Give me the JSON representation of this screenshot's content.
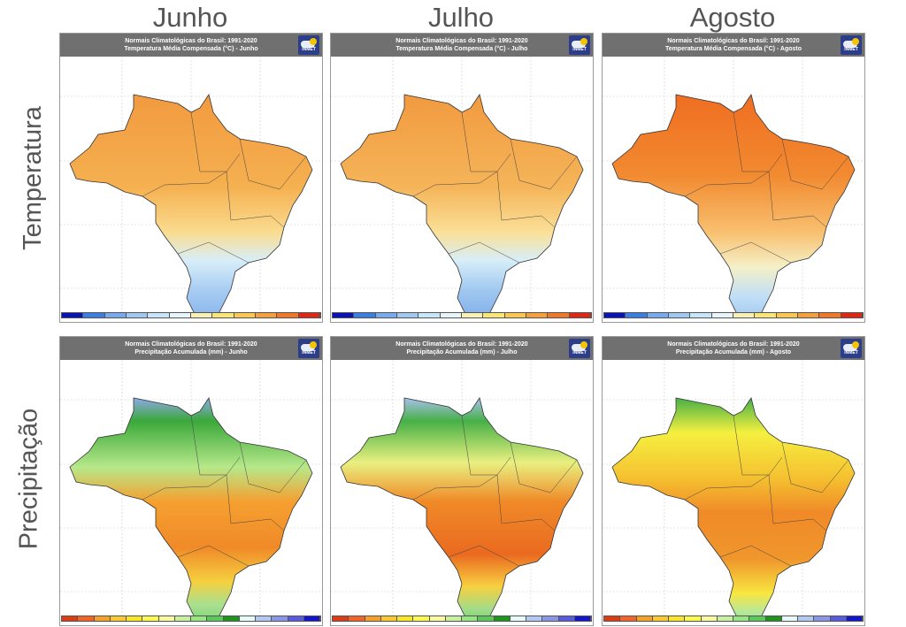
{
  "columns": [
    "Junho",
    "Julho",
    "Agosto"
  ],
  "rows": [
    "Temperatura",
    "Precipitação"
  ],
  "header_line1": "Normais Climatológicas do Brasil: 1991-2020",
  "logo": "INMET",
  "panels": [
    {
      "title": "Temperatura Média Compensada (°C) - Junho",
      "type": "temp",
      "month": "Junho"
    },
    {
      "title": "Temperatura Média Compensada (°C) - Julho",
      "type": "temp",
      "month": "Julho"
    },
    {
      "title": "Temperatura Média Compensada (°C) - Agosto",
      "type": "temp",
      "month": "Agosto"
    },
    {
      "title": "Precipitação Acumulada (mm) - Junho",
      "type": "prec",
      "month": "Junho"
    },
    {
      "title": "Precipitação Acumulada (mm) - Julho",
      "type": "prec",
      "month": "Julho"
    },
    {
      "title": "Precipitação Acumulada (mm) - Agosto",
      "type": "prec",
      "month": "Agosto"
    }
  ],
  "temp_colors": [
    "#0a14b4",
    "#3c7ee0",
    "#78aaf0",
    "#a0c8f0",
    "#c8e6fa",
    "#e6f6fc",
    "#faf0b4",
    "#fae678",
    "#fac850",
    "#f5a03c",
    "#f07828",
    "#dc2814"
  ],
  "prec_colors": [
    "#dc3c14",
    "#f06428",
    "#f5a028",
    "#fac832",
    "#fae628",
    "#fafa50",
    "#fafaa0",
    "#c8f0a0",
    "#96e682",
    "#5ac85a",
    "#1e961e",
    "#e6fafa",
    "#b4c8f0",
    "#8c96e6",
    "#5a5adc",
    "#1414c8"
  ]
}
